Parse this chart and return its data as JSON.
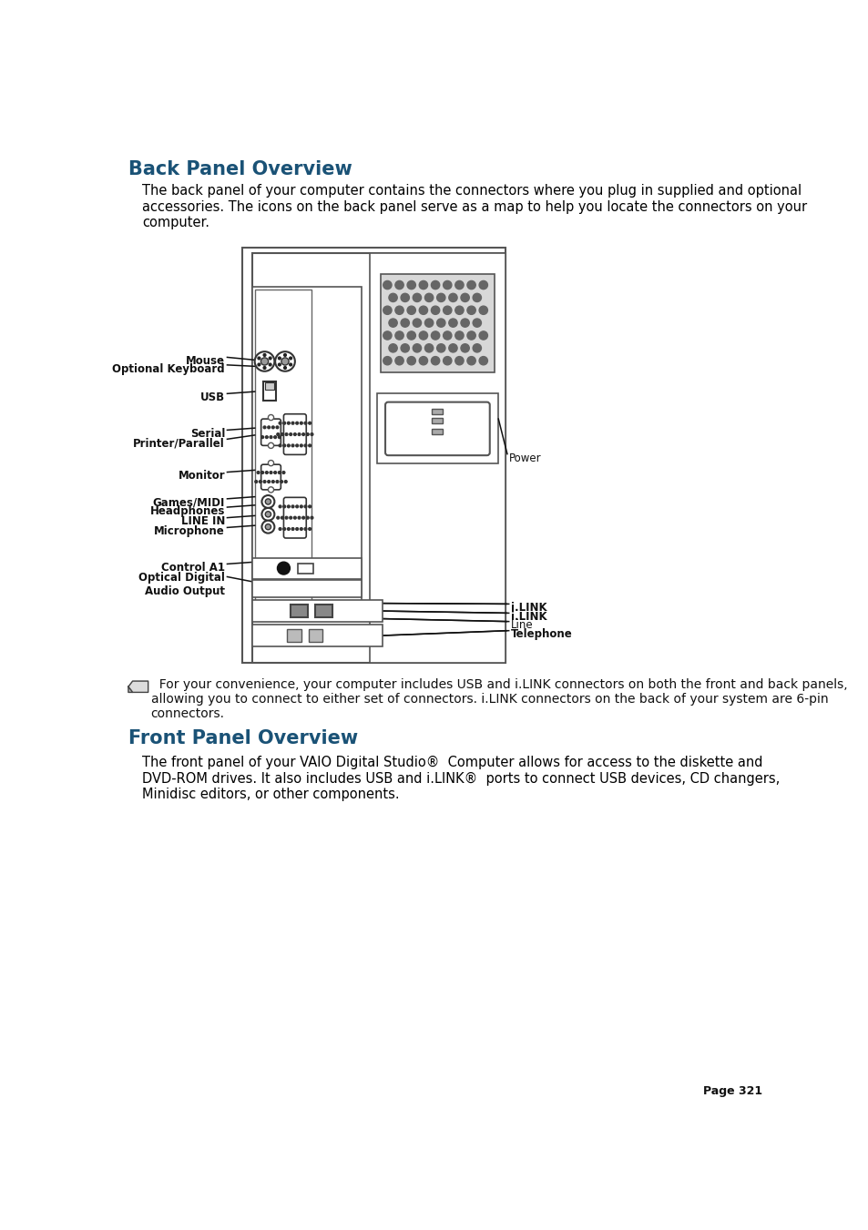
{
  "title1": "Back Panel Overview",
  "title2": "Front Panel Overview",
  "body_text1": "The back panel of your computer contains the connectors where you plug in supplied and optional\naccessories. The icons on the back panel serve as a map to help you locate the connectors on your\ncomputer.",
  "note_text": "  For your convenience, your computer includes USB and i.LINK connectors on both the front and back panels,\nallowing you to connect to either set of connectors. i.LINK connectors on the back of your system are 6-pin\nconnectors.",
  "body_text2": "The front panel of your VAIO Digital Studio®  Computer allows for access to the diskette and\nDVD-ROM drives. It also includes USB and i.LINK®  ports to connect USB devices, CD changers,\nMinidisc editors, or other components.",
  "page_num": "Page 321",
  "title_color": "#1a5276",
  "body_color": "#000000",
  "bg_color": "#ffffff"
}
